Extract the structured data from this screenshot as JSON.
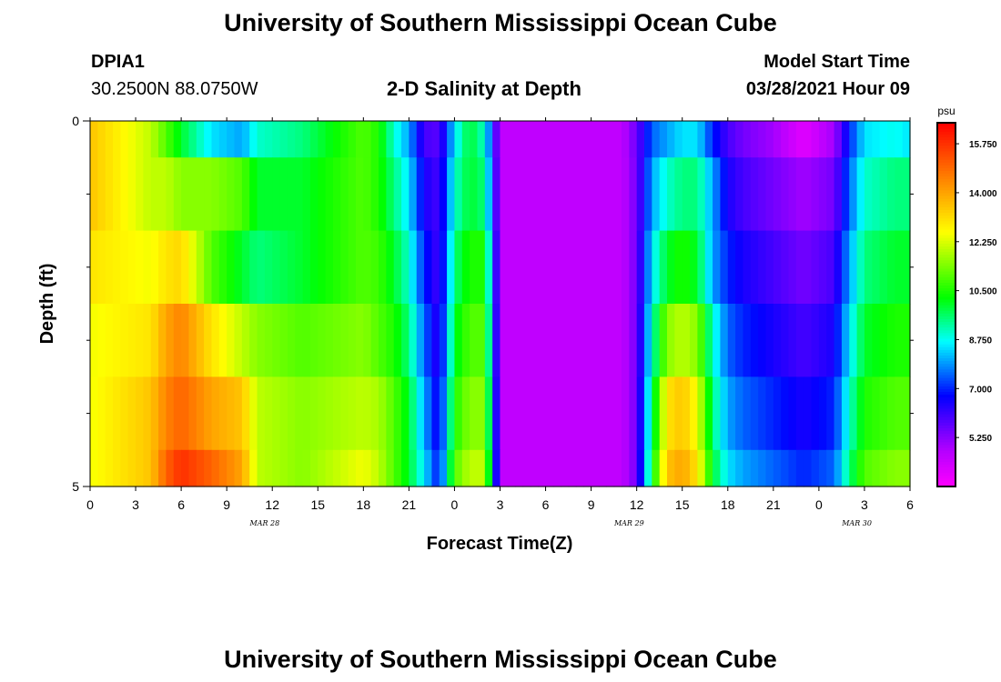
{
  "page": {
    "title_top": "University of Southern Mississippi Ocean Cube",
    "title_bottom": "University of Southern Mississippi Ocean Cube",
    "station": "DPIA1",
    "coords": "30.2500N  88.0750W",
    "model_start_label": "Model Start Time",
    "model_start_value": "03/28/2021 Hour 09",
    "plot_title": "2-D Salinity at Depth"
  },
  "chart_data": {
    "type": "heatmap",
    "title": "2-D Salinity at Depth",
    "xlabel": "Forecast Time(Z)",
    "ylabel": "Depth (ft)",
    "x_hours": 54,
    "x_tick_labels": [
      "0",
      "3",
      "6",
      "9",
      "12",
      "15",
      "18",
      "21",
      "0",
      "3",
      "6",
      "9",
      "12",
      "15",
      "18",
      "21",
      "0",
      "3",
      "6"
    ],
    "date_labels": [
      {
        "text": "MAR 28",
        "hour": 11.5
      },
      {
        "text": "MAR 29",
        "hour": 35.5
      },
      {
        "text": "MAR 30",
        "hour": 50.5
      }
    ],
    "y_tick_labels": [
      "0",
      "5"
    ],
    "y_minor_ticks": [
      1,
      2,
      3,
      4
    ],
    "ylim": [
      0,
      5
    ],
    "depth_levels": [
      0,
      1,
      2,
      3,
      4,
      5
    ],
    "colorbar": {
      "units": "psu",
      "min": 3.5,
      "max": 16.5,
      "labels": [
        "15.750",
        "14.000",
        "12.250",
        "10.500",
        "8.750",
        "7.000",
        "5.250"
      ],
      "label_values": [
        15.75,
        14.0,
        12.25,
        10.5,
        8.75,
        7.0,
        5.25
      ]
    },
    "time_keys_hours": [
      0,
      4,
      5,
      6,
      8,
      10,
      11,
      14,
      18,
      19,
      20,
      21,
      22,
      23,
      24,
      25,
      26,
      27,
      28,
      29,
      30,
      31,
      35,
      36,
      37,
      38,
      39,
      40,
      41,
      42,
      43,
      45,
      47,
      49,
      50,
      51,
      53,
      54
    ],
    "salinity_rows": [
      [
        13.5,
        12.0,
        11.0,
        10.0,
        8.5,
        8.0,
        9.0,
        9.5,
        11.0,
        10.5,
        9.0,
        8.0,
        6.0,
        5.8,
        8.5,
        10.0,
        9.0,
        4.6,
        4.6,
        4.6,
        4.6,
        4.6,
        4.6,
        5.6,
        7.5,
        8.0,
        8.5,
        8.5,
        7.0,
        6.0,
        5.5,
        5.0,
        4.0,
        5.0,
        7.0,
        8.5,
        8.8,
        8.5
      ],
      [
        13.5,
        12.0,
        12.0,
        11.5,
        11.5,
        11.0,
        10.0,
        10.0,
        11.0,
        10.5,
        9.5,
        8.5,
        6.5,
        6.0,
        9.0,
        10.0,
        9.5,
        4.6,
        4.6,
        4.6,
        4.6,
        4.6,
        4.6,
        5.5,
        8.0,
        9.0,
        9.5,
        9.5,
        8.0,
        6.5,
        6.0,
        5.5,
        5.0,
        5.5,
        7.5,
        9.0,
        9.5,
        9.5
      ],
      [
        13.0,
        12.5,
        13.0,
        13.2,
        11.0,
        10.0,
        9.5,
        10.0,
        11.0,
        10.8,
        10.0,
        9.0,
        7.0,
        6.0,
        9.5,
        10.5,
        10.5,
        4.6,
        4.6,
        4.6,
        4.6,
        4.6,
        4.6,
        5.5,
        8.5,
        10.0,
        10.5,
        10.0,
        8.0,
        7.0,
        6.5,
        6.0,
        5.5,
        6.0,
        8.0,
        9.5,
        10.0,
        10.0
      ],
      [
        12.5,
        13.0,
        14.0,
        14.5,
        13.0,
        12.0,
        11.5,
        11.0,
        11.5,
        11.0,
        10.5,
        9.5,
        7.5,
        6.2,
        10.0,
        11.0,
        11.0,
        4.6,
        4.6,
        4.6,
        4.6,
        4.6,
        4.6,
        5.5,
        9.0,
        11.5,
        12.0,
        11.5,
        9.0,
        7.5,
        7.0,
        6.5,
        6.0,
        6.5,
        8.5,
        10.0,
        10.5,
        10.5
      ],
      [
        12.5,
        13.5,
        14.5,
        15.0,
        14.0,
        13.5,
        12.0,
        11.5,
        12.0,
        11.8,
        11.0,
        10.0,
        8.0,
        6.5,
        10.5,
        11.5,
        11.5,
        4.6,
        4.6,
        4.6,
        4.6,
        4.6,
        4.6,
        5.5,
        9.5,
        13.0,
        13.5,
        12.5,
        9.5,
        8.0,
        7.5,
        7.0,
        6.5,
        7.0,
        9.0,
        10.5,
        11.0,
        11.0
      ],
      [
        12.5,
        13.5,
        15.0,
        15.8,
        15.0,
        14.0,
        12.0,
        11.5,
        12.5,
        12.0,
        11.0,
        10.0,
        8.5,
        6.8,
        11.0,
        12.0,
        12.0,
        4.6,
        4.6,
        4.6,
        4.6,
        4.6,
        4.6,
        5.5,
        10.0,
        13.5,
        14.0,
        13.0,
        10.0,
        8.5,
        8.0,
        7.5,
        7.0,
        7.5,
        9.5,
        11.0,
        11.5,
        11.5
      ]
    ]
  }
}
